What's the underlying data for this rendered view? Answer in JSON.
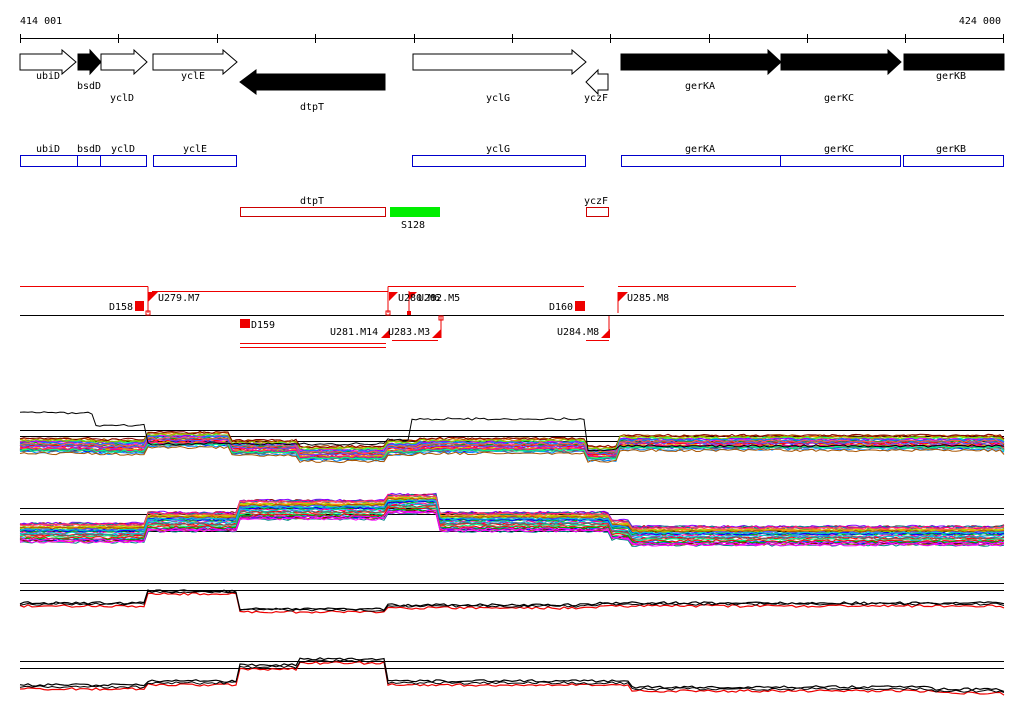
{
  "ruler": {
    "start_label": "414 001",
    "end_label": "424 000"
  },
  "genes": [
    {
      "name": "ubiD",
      "strand": "+",
      "filled": false
    },
    {
      "name": "bsdD",
      "strand": "+",
      "filled": true
    },
    {
      "name": "yclD",
      "strand": "+",
      "filled": false
    },
    {
      "name": "yclE",
      "strand": "+",
      "filled": false
    },
    {
      "name": "dtpT",
      "strand": "-",
      "filled": true
    },
    {
      "name": "yclG",
      "strand": "+",
      "filled": false
    },
    {
      "name": "yczF",
      "strand": "-",
      "filled": false
    },
    {
      "name": "gerKA",
      "strand": "+",
      "filled": true
    },
    {
      "name": "gerKC",
      "strand": "+",
      "filled": true
    },
    {
      "name": "gerKB",
      "strand": "+",
      "filled": true
    }
  ],
  "blue_track": [
    "ubiD",
    "bsdD",
    "yclD",
    "yclE",
    "yclG",
    "gerKA",
    "gerKC",
    "gerKB"
  ],
  "red_track": [
    "dtpT",
    "yczF"
  ],
  "green_feature": {
    "label": "S128",
    "color": "#00ee00"
  },
  "segments": [
    {
      "label": "D158"
    },
    {
      "label": "U279.M7"
    },
    {
      "label": "D159"
    },
    {
      "label": "U280.M6"
    },
    {
      "label": "U282.M5"
    },
    {
      "label": "U281.M14"
    },
    {
      "label": "U283.M3"
    },
    {
      "label": "D160"
    },
    {
      "label": "U284.M8"
    },
    {
      "label": "U285.M8"
    }
  ],
  "colors": {
    "forward_box": "#0000cc",
    "reverse_box": "#cc0000",
    "segment": "#ee0000",
    "green": "#00ee00"
  }
}
